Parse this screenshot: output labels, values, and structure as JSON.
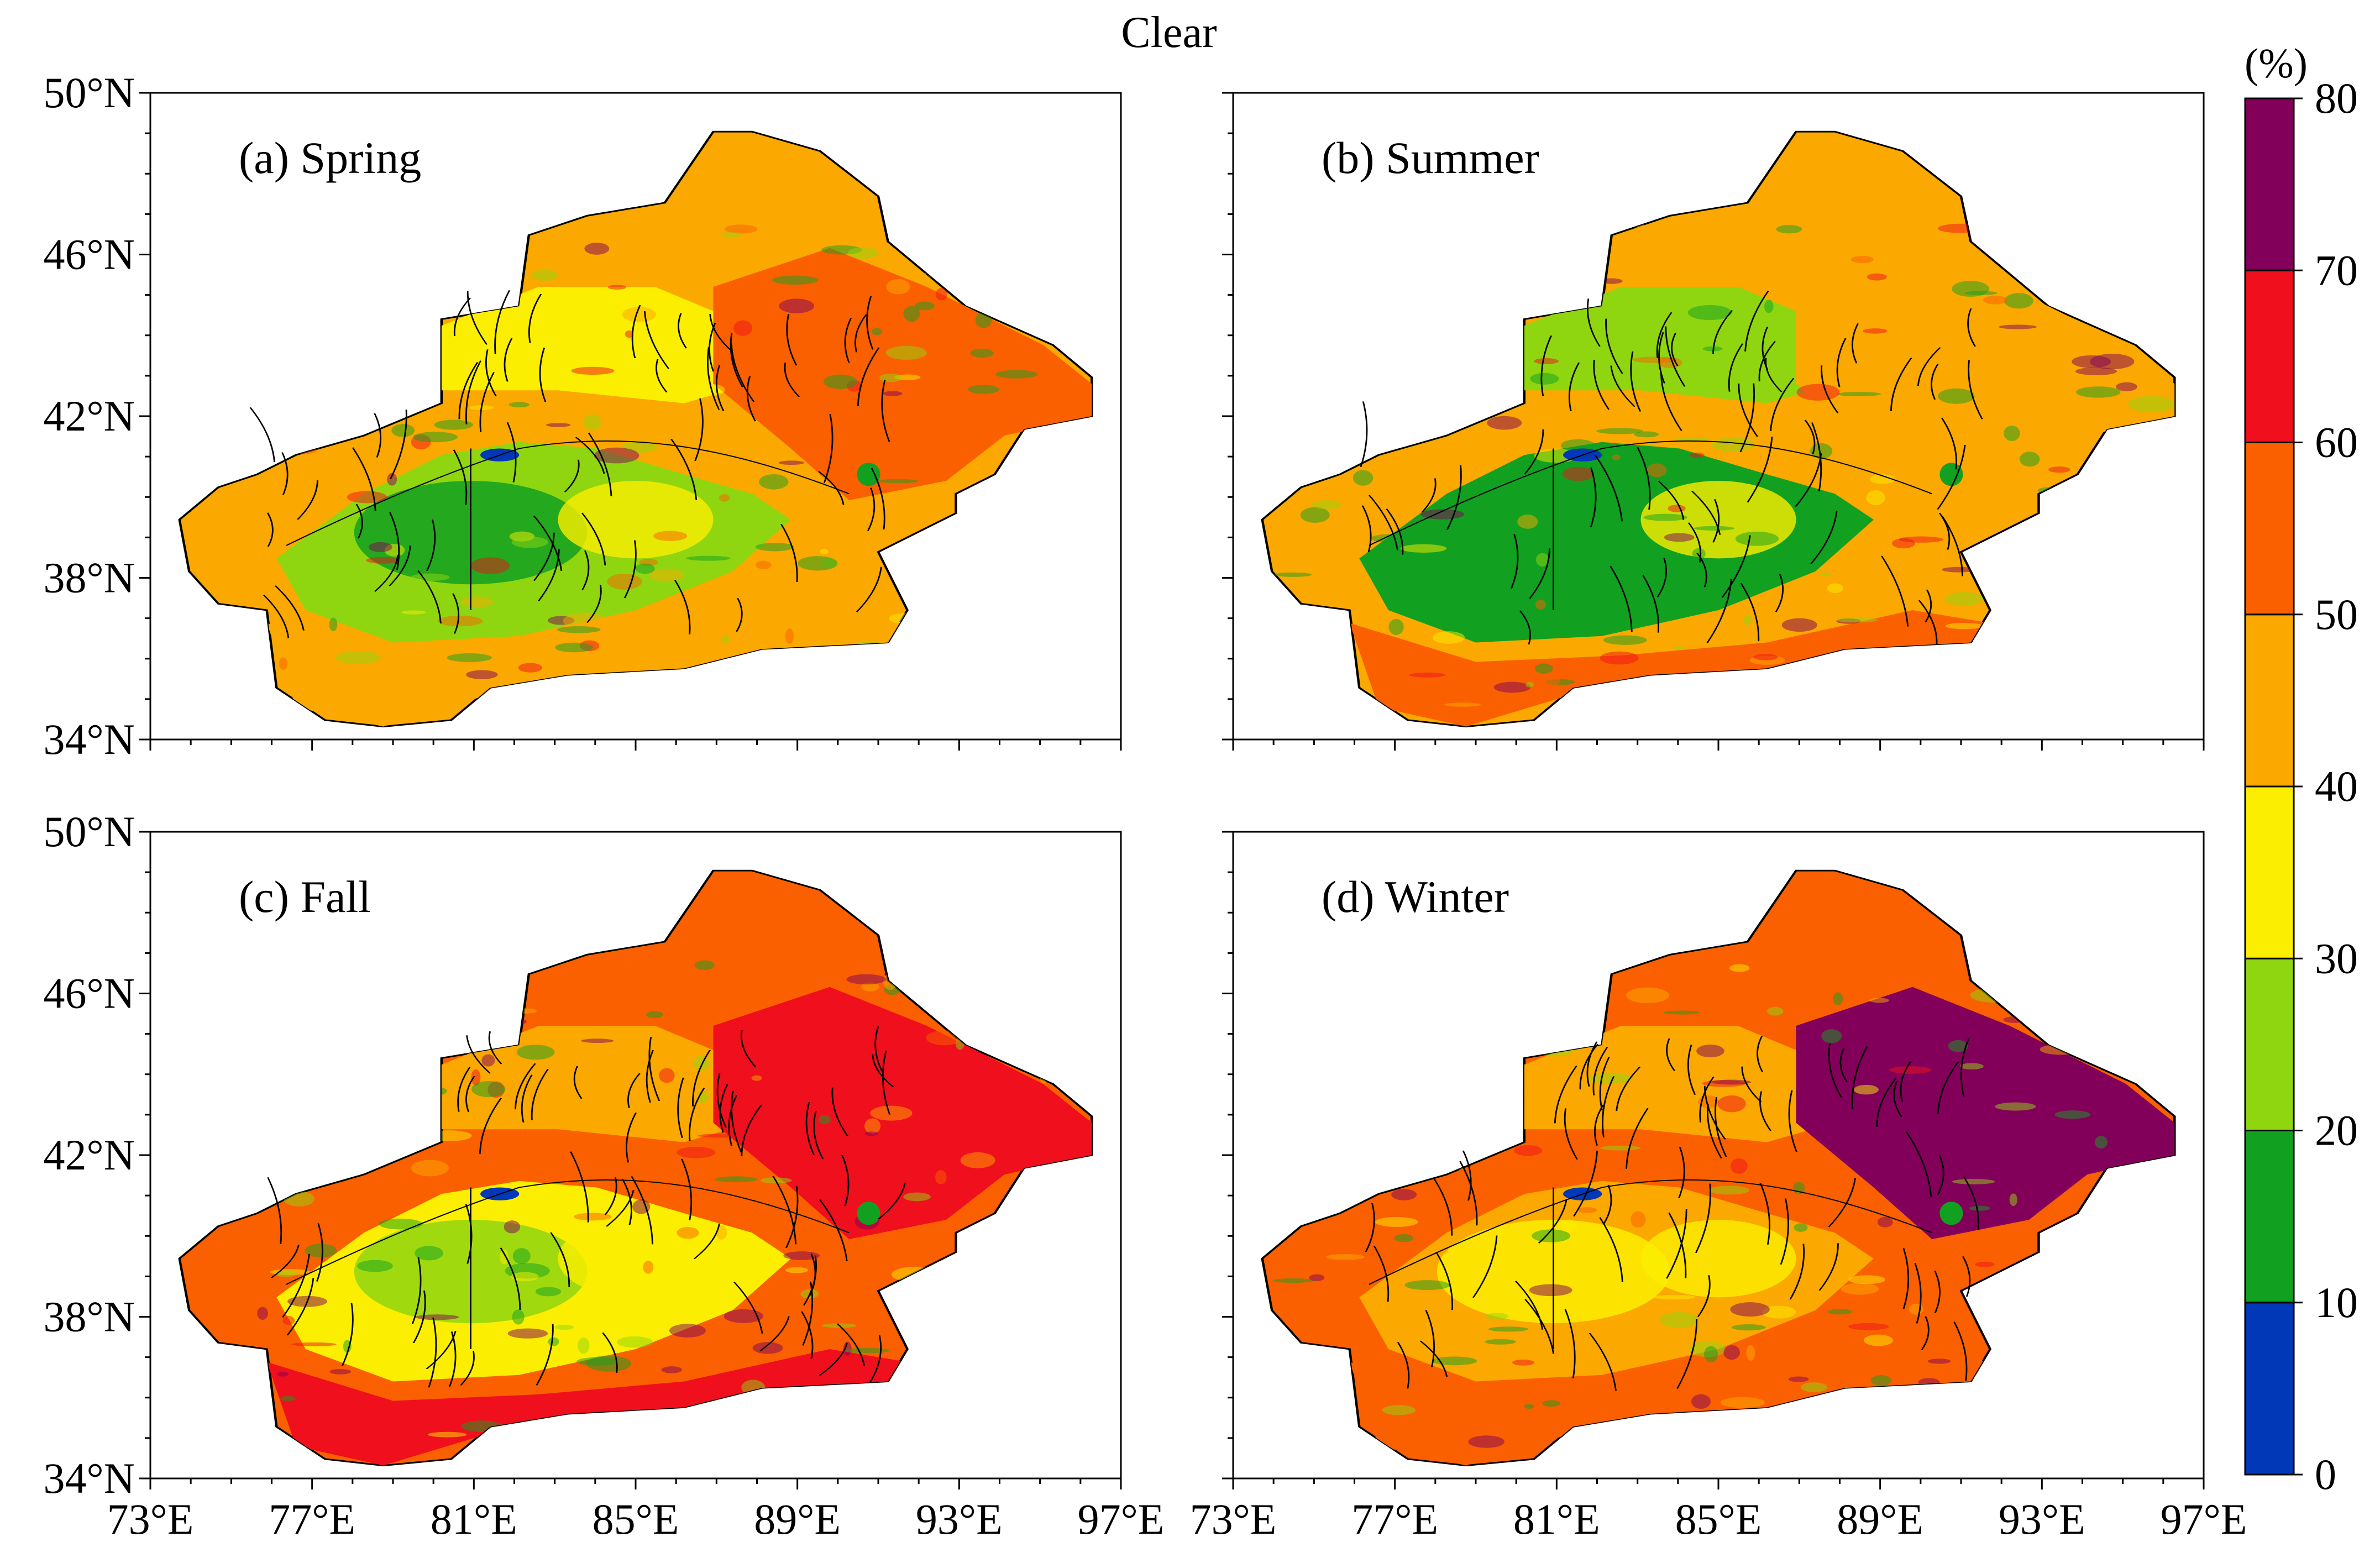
{
  "figure": {
    "title": "Clear"
  },
  "panels": [
    {
      "label": "(a) Spring",
      "season": "spring"
    },
    {
      "label": "(b) Summer",
      "season": "summer"
    },
    {
      "label": "(c) Fall",
      "season": "fall"
    },
    {
      "label": "(d) Winter",
      "season": "winter"
    }
  ],
  "axes": {
    "lat_ticks": [
      "50°N",
      "46°N",
      "42°N",
      "38°N",
      "34°N"
    ],
    "lon_ticks": [
      "73°E",
      "77°E",
      "81°E",
      "85°E",
      "89°E",
      "93°E",
      "97°E"
    ],
    "lat_range": [
      34,
      50
    ],
    "lon_range": [
      73,
      97
    ]
  },
  "colorbar": {
    "unit": "(%)",
    "levels": [
      0,
      10,
      20,
      30,
      40,
      50,
      60,
      70,
      80
    ],
    "level_labels": [
      "0",
      "10",
      "20",
      "30",
      "40",
      "50",
      "60",
      "70",
      "80"
    ],
    "colors": [
      "#0038b8",
      "#12a020",
      "#8fd610",
      "#fbee00",
      "#fba800",
      "#fa6000",
      "#f00f1c",
      "#82005a"
    ]
  }
}
